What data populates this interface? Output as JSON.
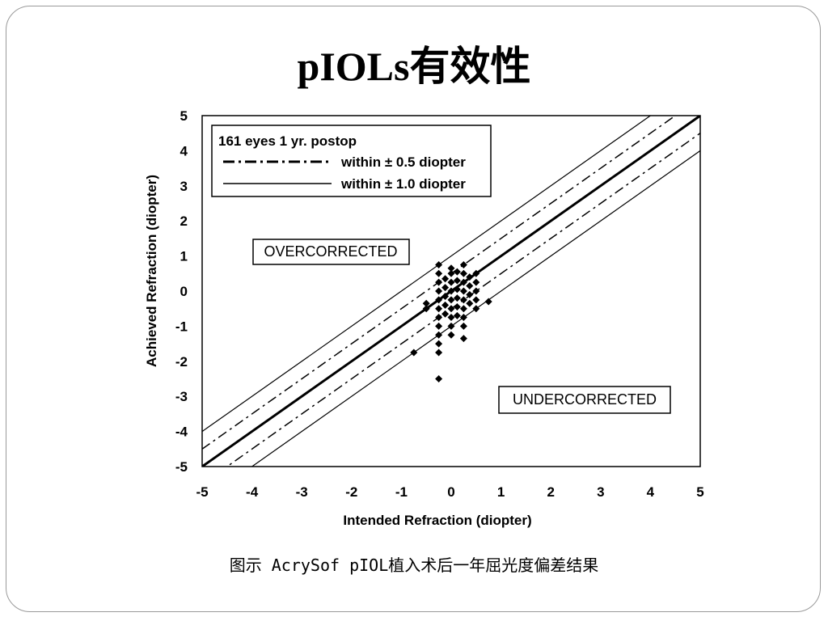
{
  "slide": {
    "title": "pIOLs有效性",
    "caption": "图示 AcrySof pIOL植入术后一年屈光度偏差结果"
  },
  "chart_data": {
    "type": "scatter",
    "title": "",
    "xlabel": "Intended Refraction (diopter)",
    "ylabel": "Achieved Refraction (diopter)",
    "xlim": [
      -5,
      5
    ],
    "ylim": [
      -5,
      5
    ],
    "x_ticks": [
      -5,
      -4,
      -3,
      -2,
      -1,
      0,
      1,
      2,
      3,
      4,
      5
    ],
    "y_ticks": [
      5,
      4,
      3,
      2,
      1,
      0,
      -1,
      -2,
      -3,
      -4,
      -5
    ],
    "grid": false,
    "legend": {
      "placement": "top-left",
      "title": "161 eyes 1 yr. postop",
      "entries": [
        {
          "label": "within ± 0.5 diopter",
          "style": "dash-dot"
        },
        {
          "label": "within ± 1.0 diopter",
          "style": "solid"
        }
      ]
    },
    "reference_lines": [
      {
        "offset": 0,
        "style": "solid-thick"
      },
      {
        "offset": 0.5,
        "style": "dash-dot"
      },
      {
        "offset": -0.5,
        "style": "dash-dot"
      },
      {
        "offset": 1.0,
        "style": "solid-thin"
      },
      {
        "offset": -1.0,
        "style": "solid-thin"
      }
    ],
    "annotations": [
      {
        "text": "OVERCORRECTED",
        "x": -2.3,
        "y": 1.15
      },
      {
        "text": "UNDERCORRECTED",
        "x": 3.5,
        "y": -3.1
      }
    ],
    "series": [
      {
        "points": [
          [
            -0.75,
            -1.75
          ],
          [
            -0.5,
            -0.5
          ],
          [
            -0.5,
            -0.35
          ],
          [
            -0.25,
            0.75
          ],
          [
            -0.25,
            0.5
          ],
          [
            -0.25,
            0.25
          ],
          [
            -0.25,
            0.0
          ],
          [
            -0.25,
            -0.25
          ],
          [
            -0.25,
            -0.5
          ],
          [
            -0.25,
            -0.75
          ],
          [
            -0.25,
            -1.0
          ],
          [
            -0.25,
            -1.25
          ],
          [
            -0.25,
            -1.5
          ],
          [
            -0.25,
            -1.75
          ],
          [
            -0.25,
            -2.5
          ],
          [
            -0.12,
            0.35
          ],
          [
            -0.12,
            0.1
          ],
          [
            -0.12,
            -0.15
          ],
          [
            -0.12,
            -0.4
          ],
          [
            -0.12,
            -0.65
          ],
          [
            0.0,
            0.65
          ],
          [
            0.0,
            0.5
          ],
          [
            0.0,
            0.25
          ],
          [
            0.0,
            0.0
          ],
          [
            0.0,
            -0.25
          ],
          [
            0.0,
            -0.5
          ],
          [
            0.0,
            -0.75
          ],
          [
            0.0,
            -1.0
          ],
          [
            0.0,
            -1.25
          ],
          [
            0.12,
            0.55
          ],
          [
            0.12,
            0.3
          ],
          [
            0.12,
            0.05
          ],
          [
            0.12,
            -0.2
          ],
          [
            0.12,
            -0.45
          ],
          [
            0.12,
            -0.7
          ],
          [
            0.25,
            0.75
          ],
          [
            0.25,
            0.5
          ],
          [
            0.25,
            0.25
          ],
          [
            0.25,
            0.0
          ],
          [
            0.25,
            -0.25
          ],
          [
            0.25,
            -0.5
          ],
          [
            0.25,
            -0.75
          ],
          [
            0.25,
            -1.0
          ],
          [
            0.25,
            -1.35
          ],
          [
            0.37,
            0.4
          ],
          [
            0.37,
            0.15
          ],
          [
            0.37,
            -0.1
          ],
          [
            0.37,
            -0.35
          ],
          [
            0.5,
            0.5
          ],
          [
            0.5,
            0.25
          ],
          [
            0.5,
            0.0
          ],
          [
            0.5,
            -0.25
          ],
          [
            0.5,
            -0.5
          ],
          [
            0.75,
            -0.3
          ]
        ]
      }
    ]
  }
}
